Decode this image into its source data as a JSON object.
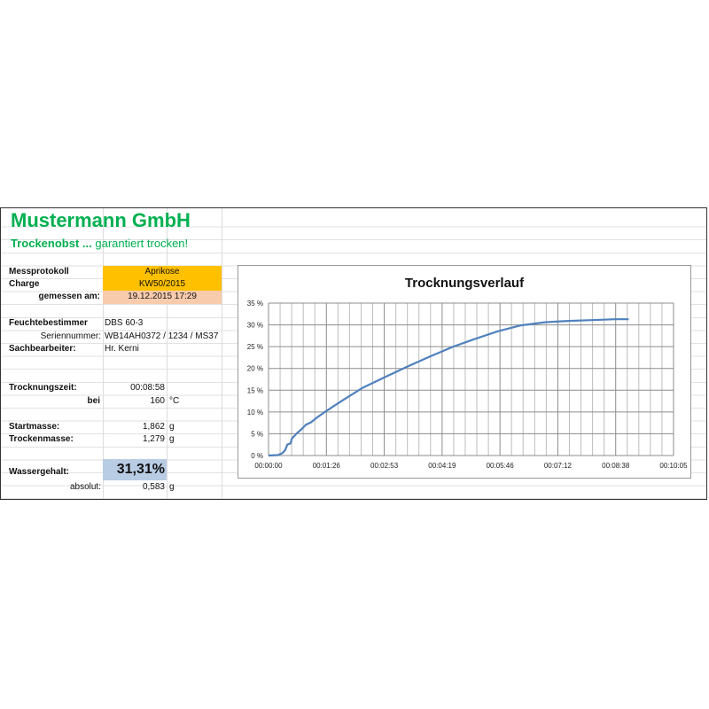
{
  "company": {
    "name": "Mustermann GmbH",
    "slogan_bold": "Trockenobst ...",
    "slogan_rest": "garantiert trocken!"
  },
  "fields": {
    "messprotokoll": {
      "label": "Messprotokoll",
      "value": "Aprikose"
    },
    "charge": {
      "label": "Charge",
      "value": "KW50/2015"
    },
    "gemessen": {
      "label": "gemessen am:",
      "value": "19.12.2015 17:29"
    },
    "feuchtebestimmer": {
      "label": "Feuchtebestimmer",
      "value": "DBS 60-3"
    },
    "seriennummer": {
      "label": "Seriennummer:",
      "value": "WB14AH0372 / 1234 / MS37"
    },
    "sachbearbeiter": {
      "label": "Sachbearbeiter:",
      "value": "Hr. Kerni"
    },
    "trocknungszeit": {
      "label": "Trocknungszeit:",
      "value": "00:08:58"
    },
    "bei": {
      "label": "bei",
      "value": "160",
      "unit": "°C"
    },
    "startmasse": {
      "label": "Startmasse:",
      "value": "1,862",
      "unit": "g"
    },
    "trockenmasse": {
      "label": "Trockenmasse:",
      "value": "1,279",
      "unit": "g"
    },
    "wassergehalt": {
      "label": "Wassergehalt:",
      "value": "31,31%"
    },
    "absolut": {
      "label": "absolut:",
      "value": "0,583",
      "unit": "g"
    }
  },
  "colors": {
    "brand": "#00B050",
    "orange": "#FFC000",
    "peach": "#F8CBAD",
    "blue": "#B8CCE4",
    "line": "#4F81BD"
  },
  "chart_data": {
    "type": "line",
    "title": "Trocknungsverlauf",
    "xlabel": "",
    "ylabel": "",
    "x_unit": "seconds (axis shown as hh:mm:ss)",
    "xlim": [
      0,
      605
    ],
    "ylim": [
      0,
      35
    ],
    "x_tick_labels": [
      "00:00:00",
      "00:01:26",
      "00:02:53",
      "00:04:19",
      "00:05:46",
      "00:07:12",
      "00:08:38",
      "00:10:05"
    ],
    "y_tick_labels": [
      "0 %",
      "5 %",
      "10 %",
      "15 %",
      "20 %",
      "25 %",
      "30 %",
      "35 %"
    ],
    "grid": true,
    "legend": "none",
    "series": [
      {
        "x": [
          0,
          14,
          21,
          25,
          28,
          33,
          35,
          43,
          49,
          56,
          63,
          73,
          87,
          109,
          140,
          175,
          210,
          245,
          276,
          307,
          342,
          377,
          413,
          448,
          483,
          518,
          538
        ],
        "y": [
          0,
          0.1,
          0.6,
          1.3,
          2.5,
          2.8,
          3.9,
          5.2,
          6.0,
          7.1,
          7.6,
          8.8,
          10.3,
          12.5,
          15.5,
          18.1,
          20.6,
          23.0,
          25.0,
          26.7,
          28.5,
          29.9,
          30.6,
          30.9,
          31.1,
          31.3,
          31.3
        ]
      }
    ]
  }
}
